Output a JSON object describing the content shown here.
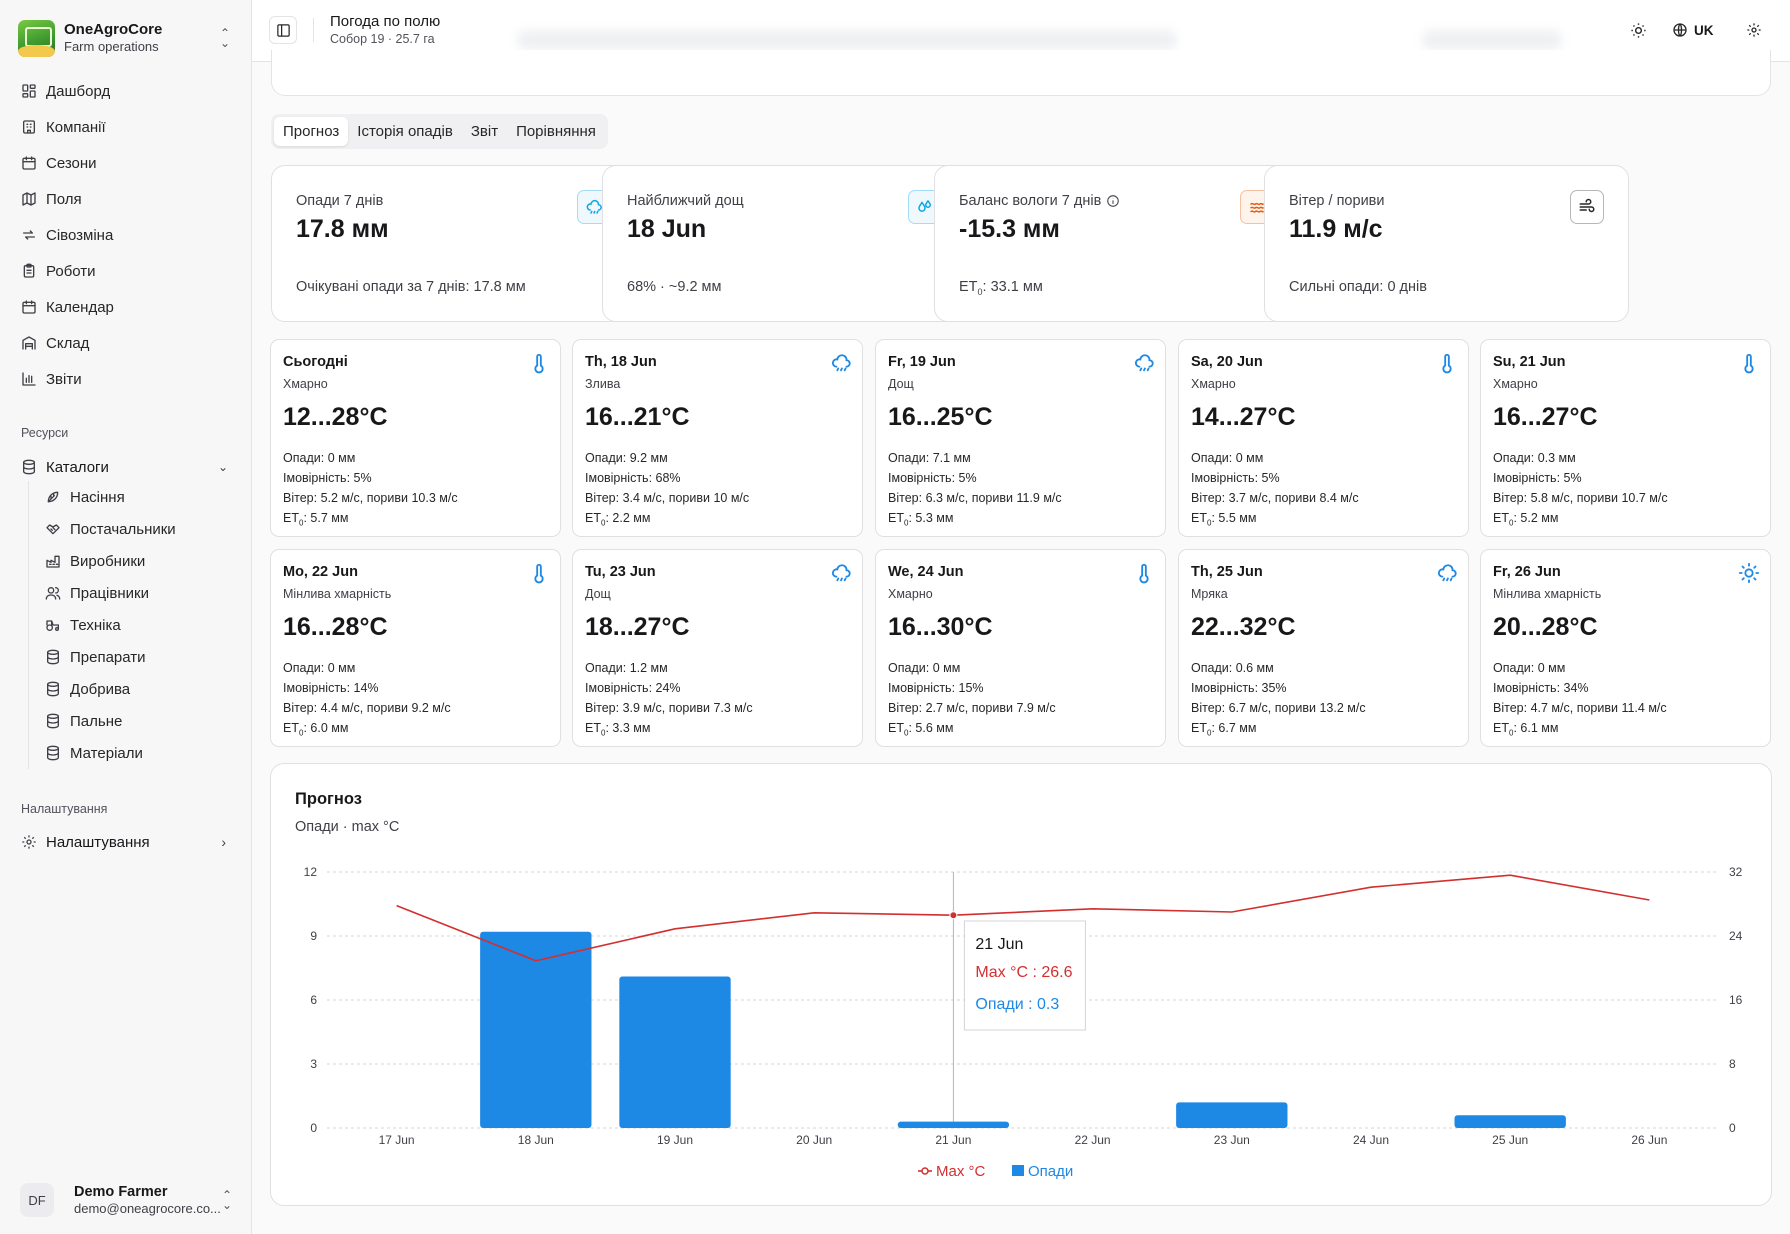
{
  "app": {
    "name": "OneAgroCore",
    "subtitle": "Farm operations"
  },
  "nav": [
    {
      "label": "Дашборд",
      "icon": "dashboard-icon"
    },
    {
      "label": "Компанії",
      "icon": "building-icon"
    },
    {
      "label": "Сезони",
      "icon": "calendar-icon"
    },
    {
      "label": "Поля",
      "icon": "map-icon"
    },
    {
      "label": "Сівозміна",
      "icon": "rotate-icon"
    },
    {
      "label": "Роботи",
      "icon": "clipboard-icon"
    },
    {
      "label": "Календар",
      "icon": "calendar-icon"
    },
    {
      "label": "Склад",
      "icon": "warehouse-icon"
    },
    {
      "label": "Звіти",
      "icon": "bar-chart-icon"
    }
  ],
  "resources": {
    "section_label": "Ресурси",
    "catalogs_label": "Каталоги",
    "items": [
      {
        "label": "Насіння",
        "icon": "seed-icon"
      },
      {
        "label": "Постачальники",
        "icon": "handshake-icon"
      },
      {
        "label": "Виробники",
        "icon": "factory-icon"
      },
      {
        "label": "Працівники",
        "icon": "users-icon"
      },
      {
        "label": "Техніка",
        "icon": "tractor-icon"
      },
      {
        "label": "Препарати",
        "icon": "database-icon"
      },
      {
        "label": "Добрива",
        "icon": "database-icon"
      },
      {
        "label": "Пальне",
        "icon": "database-icon"
      },
      {
        "label": "Матеріали",
        "icon": "database-icon"
      }
    ]
  },
  "settings": {
    "section_label": "Налаштування",
    "item_label": "Налаштування"
  },
  "user": {
    "initials": "DF",
    "name": "Demo Farmer",
    "email": "demo@oneagrocore.co..."
  },
  "header": {
    "title": "Погода по полю",
    "subtitle": "Собор 19 · 25.7 га",
    "language": "UK"
  },
  "tabs": [
    "Прогноз",
    "Історія опадів",
    "Звіт",
    "Порівняння"
  ],
  "stats": [
    {
      "label": "Опади 7 днів",
      "value": "17.8 мм",
      "note": "Очікувані опади за 7 днів: 17.8 мм",
      "icon": "cloud-rain-icon",
      "accent": "#0ea5e9"
    },
    {
      "label": "Найближчий дощ",
      "value": "18 Jun",
      "note": "68% · ~9.2 мм",
      "icon": "droplets-icon",
      "accent": "#0ea5e9"
    },
    {
      "label": "Баланс вологи 7 днів",
      "value": "-15.3 мм",
      "note_prefix": "ET",
      "note_sub": "0",
      "note_rest": ": 33.1 мм",
      "icon": "heat-waves-icon",
      "accent": "#ea580c"
    },
    {
      "label": "Вітер / пориви",
      "value": "11.9 м/с",
      "note": "Сильні опади: 0 днів",
      "icon": "wind-icon",
      "accent": "#27272a"
    }
  ],
  "labels": {
    "precip": "Опади",
    "prob": "Імовірність",
    "wind": "Вітер",
    "gusts": "пориви",
    "et": "ET",
    "et_sub": "0"
  },
  "days": [
    {
      "date": "Сьогодні",
      "cond": "Хмарно",
      "temp": "12...28°C",
      "precip": "0 мм",
      "prob": "5%",
      "wind": "5.2 м/с",
      "gust": "10.3 м/с",
      "et": "5.7 мм",
      "icon": "thermometer"
    },
    {
      "date": "Th, 18 Jun",
      "cond": "Злива",
      "temp": "16...21°C",
      "precip": "9.2 мм",
      "prob": "68%",
      "wind": "3.4 м/с",
      "gust": "10 м/с",
      "et": "2.2 мм",
      "icon": "rain"
    },
    {
      "date": "Fr, 19 Jun",
      "cond": "Дощ",
      "temp": "16...25°C",
      "precip": "7.1 мм",
      "prob": "5%",
      "wind": "6.3 м/с",
      "gust": "11.9 м/с",
      "et": "5.3 мм",
      "icon": "rain"
    },
    {
      "date": "Sa, 20 Jun",
      "cond": "Хмарно",
      "temp": "14...27°C",
      "precip": "0 мм",
      "prob": "5%",
      "wind": "3.7 м/с",
      "gust": "8.4 м/с",
      "et": "5.5 мм",
      "icon": "thermometer"
    },
    {
      "date": "Su, 21 Jun",
      "cond": "Хмарно",
      "temp": "16...27°C",
      "precip": "0.3 мм",
      "prob": "5%",
      "wind": "5.8 м/с",
      "gust": "10.7 м/с",
      "et": "5.2 мм",
      "icon": "thermometer"
    },
    {
      "date": "Mo, 22 Jun",
      "cond": "Мінлива хмарність",
      "temp": "16...28°C",
      "precip": "0 мм",
      "prob": "14%",
      "wind": "4.4 м/с",
      "gust": "9.2 м/с",
      "et": "6.0 мм",
      "icon": "thermometer"
    },
    {
      "date": "Tu, 23 Jun",
      "cond": "Дощ",
      "temp": "18...27°C",
      "precip": "1.2 мм",
      "prob": "24%",
      "wind": "3.9 м/с",
      "gust": "7.3 м/с",
      "et": "3.3 мм",
      "icon": "rain"
    },
    {
      "date": "We, 24 Jun",
      "cond": "Хмарно",
      "temp": "16...30°C",
      "precip": "0 мм",
      "prob": "15%",
      "wind": "2.7 м/с",
      "gust": "7.9 м/с",
      "et": "5.6 мм",
      "icon": "thermometer"
    },
    {
      "date": "Th, 25 Jun",
      "cond": "Мряка",
      "temp": "22...32°C",
      "precip": "0.6 мм",
      "prob": "35%",
      "wind": "6.7 м/с",
      "gust": "13.2 м/с",
      "et": "6.7 мм",
      "icon": "rain"
    },
    {
      "date": "Fr, 26 Jun",
      "cond": "Мінлива хмарність",
      "temp": "20...28°C",
      "precip": "0 мм",
      "prob": "34%",
      "wind": "4.7 м/с",
      "gust": "11.4 м/с",
      "et": "6.1 мм",
      "icon": "sun"
    }
  ],
  "chart_card": {
    "title": "Прогноз",
    "subtitle": "Опади · max °C"
  },
  "chart_data": {
    "type": "bar",
    "categories": [
      "17 Jun",
      "18 Jun",
      "19 Jun",
      "20 Jun",
      "21 Jun",
      "22 Jun",
      "23 Jun",
      "24 Jun",
      "25 Jun",
      "26 Jun"
    ],
    "series": [
      {
        "name": "Опади",
        "type": "bar",
        "axis": "left",
        "color": "#1e88e5",
        "values": [
          0,
          9.2,
          7.1,
          0,
          0.3,
          0,
          1.2,
          0,
          0.6,
          0
        ]
      },
      {
        "name": "Max °C",
        "type": "line",
        "axis": "right",
        "color": "#d32f2f",
        "values": [
          27.8,
          20.9,
          24.9,
          26.9,
          26.6,
          27.4,
          27.0,
          30.1,
          31.6,
          28.5
        ]
      }
    ],
    "y_left": {
      "ticks": [
        0,
        3,
        6,
        9,
        12
      ],
      "lim": [
        0,
        12
      ]
    },
    "y_right": {
      "ticks": [
        0,
        8,
        16,
        24,
        32
      ],
      "lim": [
        0,
        32
      ]
    },
    "tooltip": {
      "category": "21 Jun",
      "lines": [
        {
          "label": "Max °C : 26.6",
          "color": "#d32f2f"
        },
        {
          "label": "Опади : 0.3",
          "color": "#1e88e5"
        }
      ]
    },
    "legend": "bottom-center",
    "grid": true
  }
}
